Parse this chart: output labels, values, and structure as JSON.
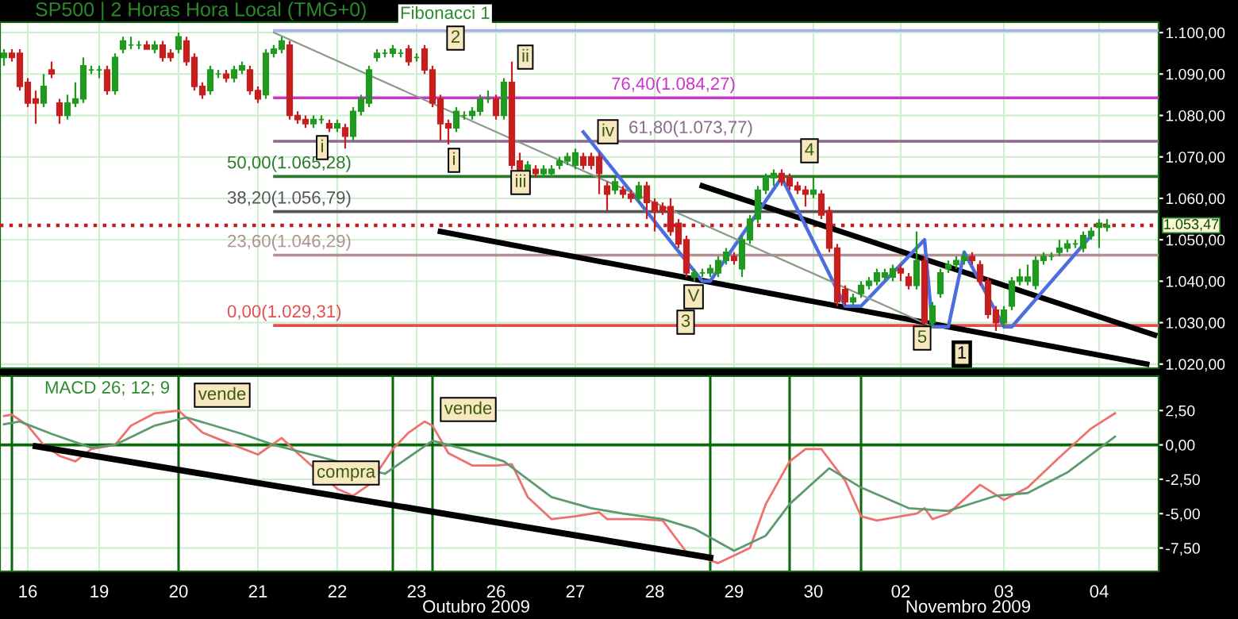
{
  "chart_data": [
    {
      "type": "candlestick",
      "title": "SP500 | 2 Horas Hora Local (TMG+0)",
      "categories": [
        null,
        null,
        null,
        "16",
        null,
        null,
        null,
        null,
        null,
        null,
        null,
        null,
        "19",
        null,
        null,
        null,
        null,
        null,
        null,
        null,
        null,
        null,
        "20",
        null,
        null,
        null,
        null,
        null,
        null,
        null,
        null,
        null,
        "21",
        null,
        null,
        null,
        null,
        null,
        null,
        null,
        null,
        null,
        "22",
        null,
        null,
        null,
        null,
        null,
        null,
        null,
        null,
        null,
        "23",
        null,
        null,
        null,
        null,
        null,
        null,
        null,
        null,
        null,
        "26",
        null,
        null,
        null,
        null,
        null,
        null,
        null,
        null,
        null,
        "27",
        null,
        null,
        null,
        null,
        null,
        null,
        null,
        null,
        null,
        "28",
        null,
        null,
        null,
        null,
        null,
        null,
        null,
        null,
        null,
        "29",
        null,
        null,
        null,
        null,
        null,
        null,
        null,
        null,
        null,
        "30",
        null,
        null,
        null,
        null,
        null,
        null,
        null,
        null,
        null,
        null,
        "02",
        null,
        null,
        null,
        null,
        null,
        null,
        null,
        null,
        null,
        null,
        null,
        null,
        "03",
        null,
        null,
        null,
        null,
        null,
        null,
        null,
        null,
        null,
        null,
        null,
        "04",
        null,
        null,
        null,
        null,
        null,
        null,
        null
      ],
      "ohlc": [
        [
          1094,
          1096,
          1092,
          1095
        ],
        [
          1095,
          1096,
          1093,
          1094
        ],
        [
          1095,
          1096,
          1086,
          1087
        ],
        [
          1088,
          1089,
          1082,
          1083
        ],
        [
          1084,
          1086,
          1078,
          1083
        ],
        [
          1083,
          1090,
          1082,
          1087
        ],
        [
          1091,
          1093,
          1089,
          1090
        ],
        [
          1083,
          1084,
          1078,
          1080
        ],
        [
          1080,
          1085,
          1079,
          1083
        ],
        [
          1083,
          1088,
          1082,
          1084
        ],
        [
          1084,
          1094,
          1083,
          1092
        ],
        [
          1091,
          1092,
          1090,
          1091
        ],
        [
          1091,
          1092,
          1089,
          1091
        ],
        [
          1091,
          1092,
          1085,
          1086
        ],
        [
          1086,
          1095,
          1085,
          1094
        ],
        [
          1096,
          1099,
          1095,
          1098
        ],
        [
          1097,
          1099,
          1096,
          1097
        ],
        [
          1097,
          1098,
          1096,
          1097
        ],
        [
          1097,
          1098,
          1096,
          1096
        ],
        [
          1096,
          1098,
          1095,
          1097
        ],
        [
          1097,
          1098,
          1093,
          1094
        ],
        [
          1095,
          1096,
          1093,
          1094
        ],
        [
          1096,
          1100,
          1095,
          1099
        ],
        [
          1098,
          1099,
          1092,
          1093
        ],
        [
          1094,
          1095,
          1086,
          1087
        ],
        [
          1087,
          1088,
          1084,
          1085
        ],
        [
          1086,
          1092,
          1085,
          1091
        ],
        [
          1090,
          1091,
          1089,
          1090
        ],
        [
          1090,
          1091,
          1088,
          1089
        ],
        [
          1089,
          1092,
          1088,
          1091
        ],
        [
          1091,
          1093,
          1090,
          1092
        ],
        [
          1091,
          1092,
          1085,
          1086
        ],
        [
          1086,
          1087,
          1083,
          1084
        ],
        [
          1085,
          1096,
          1084,
          1095
        ],
        [
          1095,
          1097,
          1094,
          1096
        ],
        [
          1096,
          1099,
          1095,
          1098
        ],
        [
          1097,
          1098,
          1079,
          1080
        ],
        [
          1080,
          1081,
          1078,
          1079
        ],
        [
          1079,
          1080,
          1077,
          1078
        ],
        [
          1078,
          1080,
          1077,
          1079
        ],
        [
          1079,
          1080,
          1078,
          1079
        ],
        [
          1078,
          1079,
          1076,
          1077
        ],
        [
          1077,
          1079,
          1076,
          1078
        ],
        [
          1077,
          1078,
          1072,
          1075
        ],
        [
          1075,
          1082,
          1074,
          1081
        ],
        [
          1081,
          1085,
          1080,
          1084
        ],
        [
          1083,
          1092,
          1082,
          1091
        ],
        [
          1094,
          1096,
          1093,
          1095
        ],
        [
          1095,
          1096,
          1094,
          1095
        ],
        [
          1095,
          1097,
          1094,
          1096
        ],
        [
          1095,
          1096,
          1094,
          1095
        ],
        [
          1096,
          1097,
          1092,
          1093
        ],
        [
          1094,
          1095,
          1093,
          1094
        ],
        [
          1096,
          1097,
          1090,
          1091
        ],
        [
          1091,
          1092,
          1082,
          1083
        ],
        [
          1084,
          1085,
          1074,
          1078
        ],
        [
          1078,
          1079,
          1073,
          1077
        ],
        [
          1077,
          1082,
          1076,
          1081
        ],
        [
          1080,
          1081,
          1079,
          1080
        ],
        [
          1080,
          1082,
          1079,
          1081
        ],
        [
          1081,
          1085,
          1080,
          1084
        ],
        [
          1084,
          1086,
          1083,
          1084
        ],
        [
          1084,
          1085,
          1079,
          1080
        ],
        [
          1080,
          1089,
          1079,
          1088
        ],
        [
          1088,
          1093,
          1067,
          1068
        ],
        [
          1069,
          1071,
          1066,
          1067
        ],
        [
          1067,
          1069,
          1066,
          1068
        ],
        [
          1067,
          1068,
          1065,
          1066
        ],
        [
          1066,
          1068,
          1065,
          1067
        ],
        [
          1066,
          1068,
          1065,
          1067
        ],
        [
          1068,
          1070,
          1067,
          1069
        ],
        [
          1069,
          1071,
          1068,
          1070
        ],
        [
          1068,
          1072,
          1067,
          1071
        ],
        [
          1070,
          1071,
          1067,
          1068
        ],
        [
          1070,
          1071,
          1067,
          1068
        ],
        [
          1070,
          1071,
          1061,
          1066
        ],
        [
          1063,
          1064,
          1057,
          1061
        ],
        [
          1062,
          1065,
          1061,
          1064
        ],
        [
          1062,
          1063,
          1060,
          1061
        ],
        [
          1061,
          1062,
          1059,
          1060
        ],
        [
          1060,
          1064,
          1059,
          1063
        ],
        [
          1063,
          1064,
          1055,
          1059
        ],
        [
          1059,
          1060,
          1052,
          1057
        ],
        [
          1058,
          1059,
          1056,
          1057
        ],
        [
          1058,
          1060,
          1051,
          1052
        ],
        [
          1054,
          1055,
          1048,
          1049
        ],
        [
          1050,
          1051,
          1041,
          1042
        ],
        [
          1041,
          1043,
          1040,
          1042
        ],
        [
          1042,
          1043,
          1041,
          1042
        ],
        [
          1042,
          1044,
          1041,
          1043
        ],
        [
          1042,
          1046,
          1041,
          1045
        ],
        [
          1045,
          1048,
          1044,
          1047
        ],
        [
          1046,
          1047,
          1044,
          1045
        ],
        [
          1043,
          1051,
          1041,
          1050
        ],
        [
          1050,
          1056,
          1049,
          1055
        ],
        [
          1055,
          1063,
          1054,
          1062
        ],
        [
          1062,
          1066,
          1061,
          1065
        ],
        [
          1065,
          1067,
          1063,
          1066
        ],
        [
          1066,
          1067,
          1063,
          1064
        ],
        [
          1065,
          1066,
          1062,
          1063
        ],
        [
          1063,
          1064,
          1061,
          1062
        ],
        [
          1062,
          1063,
          1058,
          1061
        ],
        [
          1061,
          1065,
          1060,
          1062
        ],
        [
          1061,
          1062,
          1055,
          1056
        ],
        [
          1057,
          1058,
          1047,
          1048
        ],
        [
          1048,
          1049,
          1034,
          1035
        ],
        [
          1038,
          1039,
          1034,
          1035
        ],
        [
          1035,
          1037,
          1034,
          1036
        ],
        [
          1037,
          1040,
          1036,
          1039
        ],
        [
          1039,
          1041,
          1038,
          1040
        ],
        [
          1040,
          1043,
          1039,
          1042
        ],
        [
          1041,
          1043,
          1040,
          1042
        ],
        [
          1041,
          1044,
          1040,
          1043
        ],
        [
          1043,
          1044,
          1040,
          1042
        ],
        [
          1041,
          1042,
          1038,
          1039
        ],
        [
          1039,
          1052,
          1038,
          1045
        ],
        [
          1045,
          1046,
          1029,
          1030
        ],
        [
          1030,
          1035,
          1029,
          1034
        ],
        [
          1037,
          1043,
          1036,
          1042
        ],
        [
          1043,
          1045,
          1042,
          1044
        ],
        [
          1044,
          1046,
          1043,
          1045
        ],
        [
          1045,
          1047,
          1044,
          1046
        ],
        [
          1046,
          1047,
          1044,
          1045
        ],
        [
          1044,
          1045,
          1039,
          1040
        ],
        [
          1040,
          1041,
          1031,
          1032
        ],
        [
          1033,
          1034,
          1028,
          1030
        ],
        [
          1030,
          1034,
          1029,
          1033
        ],
        [
          1034,
          1041,
          1033,
          1040
        ],
        [
          1040,
          1043,
          1039,
          1041
        ],
        [
          1040,
          1044,
          1039,
          1041
        ],
        [
          1039,
          1046,
          1038,
          1045
        ],
        [
          1045,
          1047,
          1044,
          1046
        ],
        [
          1046,
          1047,
          1045,
          1046
        ],
        [
          1047,
          1050,
          1046,
          1048
        ],
        [
          1048,
          1050,
          1047,
          1049
        ],
        [
          1049,
          1050,
          1048,
          1049
        ],
        [
          1048,
          1052,
          1047,
          1051
        ],
        [
          1051,
          1053,
          1050,
          1052
        ],
        [
          1053,
          1055,
          1048,
          1054
        ],
        [
          1053,
          1055,
          1052,
          1053.47
        ],
        null,
        null,
        null,
        null,
        null,
        null
      ],
      "series": [
        {
          "type": "line",
          "color": "#000000",
          "values": [
            null,
            null,
            null,
            null,
            null,
            null,
            null,
            null,
            null,
            null,
            null,
            null,
            null,
            null,
            null,
            null,
            null,
            null,
            null,
            null,
            null,
            null,
            null,
            null,
            null,
            null,
            null,
            null,
            null,
            null,
            null,
            null,
            null,
            null,
            null,
            null,
            null,
            null,
            null,
            null,
            null,
            null,
            null,
            null,
            null,
            null,
            null,
            null,
            null,
            null,
            null,
            null,
            null,
            null,
            null,
            1052,
            null,
            null,
            null,
            null,
            null,
            null,
            null,
            null,
            null,
            null,
            null,
            null,
            null,
            null,
            null,
            null,
            null,
            null,
            null,
            null,
            null,
            null,
            null,
            null,
            null,
            null,
            null,
            null,
            null,
            null,
            null,
            null,
            null,
            null,
            null,
            null,
            null,
            null,
            null,
            null,
            null,
            null,
            null,
            null,
            null,
            null,
            null,
            null,
            null,
            null,
            null,
            null,
            null,
            null,
            null,
            null,
            null,
            null,
            null,
            null,
            null,
            null,
            null,
            null,
            null,
            null,
            null,
            null,
            null,
            null,
            null,
            null,
            null,
            null,
            null,
            null,
            null,
            null,
            null,
            null,
            null,
            null,
            null,
            null,
            null,
            null,
            null,
            null,
            1020,
            null
          ]
        },
        {
          "type": "line",
          "color": "#000000",
          "values": [
            null,
            null,
            null,
            null,
            null,
            null,
            null,
            null,
            null,
            null,
            null,
            null,
            null,
            null,
            null,
            null,
            null,
            null,
            null,
            null,
            null,
            null,
            null,
            null,
            null,
            null,
            null,
            null,
            null,
            null,
            null,
            null,
            null,
            null,
            null,
            null,
            null,
            null,
            null,
            null,
            null,
            null,
            null,
            null,
            null,
            null,
            null,
            null,
            null,
            null,
            null,
            null,
            null,
            null,
            null,
            null,
            null,
            null,
            null,
            null,
            null,
            null,
            null,
            null,
            null,
            null,
            null,
            null,
            null,
            null,
            null,
            null,
            null,
            null,
            null,
            null,
            null,
            null,
            null,
            null,
            null,
            null,
            null,
            null,
            null,
            null,
            null,
            null,
            1063,
            null,
            null,
            null,
            null,
            null,
            null,
            null,
            null,
            null,
            null,
            null,
            null,
            null,
            null,
            null,
            null,
            null,
            null,
            null,
            null,
            null,
            null,
            null,
            null,
            null,
            null,
            null,
            null,
            null,
            null,
            null,
            null,
            null,
            null,
            null,
            null,
            null,
            null,
            null,
            null,
            null,
            null,
            null,
            null,
            null,
            null,
            null,
            null,
            null,
            null,
            null,
            null,
            null,
            null,
            null,
            null,
            1027
          ]
        },
        {
          "type": "line",
          "color": "#4a6ee0",
          "values": [
            null,
            null,
            null,
            null,
            null,
            null,
            null,
            null,
            null,
            null,
            null,
            null,
            null,
            null,
            null,
            null,
            null,
            null,
            null,
            null,
            null,
            null,
            null,
            null,
            null,
            null,
            null,
            null,
            null,
            null,
            null,
            null,
            null,
            null,
            null,
            null,
            null,
            null,
            null,
            null,
            null,
            null,
            null,
            null,
            null,
            null,
            null,
            null,
            null,
            null,
            null,
            null,
            null,
            null,
            null,
            null,
            null,
            null,
            null,
            null,
            null,
            null,
            null,
            null,
            null,
            null,
            null,
            null,
            null,
            null,
            null,
            null,
            null,
            1076,
            null,
            null,
            null,
            null,
            null,
            null,
            null,
            null,
            null,
            null,
            null,
            null,
            null,
            null,
            1040,
            1040,
            null,
            null,
            null,
            null,
            null,
            null,
            null,
            null,
            1065,
            null,
            null,
            null,
            null,
            null,
            null,
            null,
            1034,
            null,
            1034,
            null,
            null,
            null,
            null,
            null,
            null,
            null,
            1050,
            1029,
            null,
            1029,
            null,
            1047,
            null,
            null,
            null,
            null,
            1029,
            1029,
            null,
            null,
            null,
            null,
            null,
            null,
            null,
            null,
            null,
            1051,
            null,
            null,
            null,
            null,
            null,
            null,
            null,
            null
          ]
        },
        {
          "type": "line",
          "color": "#8a9a8a",
          "values": [
            null,
            null,
            null,
            null,
            null,
            null,
            null,
            null,
            null,
            null,
            null,
            null,
            null,
            null,
            null,
            null,
            null,
            null,
            null,
            null,
            null,
            null,
            null,
            null,
            null,
            null,
            null,
            null,
            null,
            null,
            null,
            null,
            null,
            null,
            1100,
            null,
            null,
            null,
            null,
            null,
            null,
            null,
            null,
            null,
            null,
            null,
            null,
            null,
            null,
            null,
            null,
            null,
            null,
            null,
            null,
            null,
            null,
            null,
            null,
            null,
            null,
            null,
            null,
            null,
            null,
            null,
            null,
            null,
            null,
            null,
            null,
            null,
            null,
            null,
            null,
            null,
            null,
            null,
            null,
            null,
            null,
            null,
            null,
            null,
            null,
            null,
            null,
            null,
            null,
            null,
            null,
            null,
            null,
            null,
            null,
            null,
            null,
            null,
            null,
            null,
            null,
            null,
            null,
            null,
            null,
            null,
            null,
            null,
            null,
            null,
            null,
            null,
            null,
            null,
            null,
            null,
            null,
            1029,
            null,
            null,
            null,
            null,
            null,
            null,
            null,
            null,
            null,
            null,
            null,
            null,
            null,
            null,
            null,
            null,
            null,
            null,
            null,
            null,
            null,
            null,
            null,
            null,
            null,
            null,
            null,
            null
          ]
        }
      ],
      "ylim": [
        1019,
        1102.5
      ],
      "yticks": [
        {
          "value": 1020,
          "label": "1.020,00"
        },
        {
          "value": 1030,
          "label": "1.030,00"
        },
        {
          "value": 1040,
          "label": "1.040,00"
        },
        {
          "value": 1050,
          "label": "1.050,00"
        },
        {
          "value": 1060,
          "label": "1.060,00"
        },
        {
          "value": 1070,
          "label": "1.070,00"
        },
        {
          "value": 1080,
          "label": "1.080,00"
        },
        {
          "value": 1090,
          "label": "1.090,00"
        },
        {
          "value": 1100,
          "label": "1.100,00"
        }
      ],
      "grid": true,
      "tick_labels": "y",
      "ref_lines": [
        {
          "axis": "y",
          "value": 1100.5,
          "color": "#aab0f0"
        },
        {
          "axis": "y",
          "value": 1084.27,
          "label": "76,40(1.084,27)",
          "color": "#cc33cc"
        },
        {
          "axis": "y",
          "value": 1073.77,
          "label": "61,80(1.073,77)",
          "color": "#8a6a8a"
        },
        {
          "axis": "y",
          "value": 1065.28,
          "label": "50,00(1.065,28)",
          "color": "#2a7a2a"
        },
        {
          "axis": "y",
          "value": 1056.79,
          "label": "38,20(1.056,79)",
          "color": "#555555"
        },
        {
          "axis": "y",
          "value": 1046.29,
          "label": "23,60(1.046,29)",
          "color": "#b09090"
        },
        {
          "axis": "y",
          "value": 1029.31,
          "label": "0,00(1.029,31)",
          "color": "#e05050"
        },
        {
          "axis": "y",
          "value": 1053.47,
          "label": "1.053,47",
          "color": "#c02020",
          "line_style": "dotted"
        }
      ],
      "annotations": [
        "Fibonacci 1",
        "2",
        "ii",
        "i",
        "i",
        "iii",
        "iv",
        "V",
        "3",
        "4",
        "5",
        "1"
      ]
    },
    {
      "type": "line",
      "categories": [
        null,
        null,
        null,
        "16",
        null,
        null,
        null,
        null,
        null,
        null,
        null,
        null,
        "19",
        null,
        null,
        null,
        null,
        null,
        null,
        null,
        null,
        null,
        "20",
        null,
        null,
        null,
        null,
        null,
        null,
        null,
        null,
        null,
        "21",
        null,
        null,
        null,
        null,
        null,
        null,
        null,
        null,
        null,
        "22",
        null,
        null,
        null,
        null,
        null,
        null,
        null,
        null,
        null,
        "23",
        null,
        null,
        null,
        null,
        null,
        null,
        null,
        null,
        null,
        "26",
        null,
        null,
        null,
        null,
        null,
        null,
        null,
        null,
        null,
        "27",
        null,
        null,
        null,
        null,
        null,
        null,
        null,
        null,
        null,
        "28",
        null,
        null,
        null,
        null,
        null,
        null,
        null,
        null,
        null,
        "29",
        null,
        null,
        null,
        null,
        null,
        null,
        null,
        null,
        null,
        "30",
        null,
        null,
        null,
        null,
        null,
        null,
        null,
        null,
        null,
        null,
        "02",
        null,
        null,
        null,
        null,
        null,
        null,
        null,
        null,
        null,
        null,
        null,
        null,
        "03",
        null,
        null,
        null,
        null,
        null,
        null,
        null,
        null,
        null,
        null,
        null,
        "04",
        null,
        null,
        null,
        null,
        null,
        null,
        null
      ],
      "series": [
        {
          "color": "#f07070",
          "values": [
            2.1,
            2.2,
            null,
            1.4,
            null,
            0,
            null,
            -0.8,
            null,
            -1.2,
            null,
            -0.3,
            null,
            null,
            0,
            null,
            1.4,
            null,
            null,
            2.3,
            null,
            null,
            2.5,
            null,
            null,
            0.9,
            null,
            null,
            0.2,
            null,
            null,
            null,
            -0.7,
            null,
            null,
            0.5,
            null,
            -0.6,
            null,
            null,
            null,
            null,
            -3.2,
            null,
            -3.7,
            null,
            -2.9,
            null,
            null,
            -0.3,
            null,
            0.9,
            null,
            1.7,
            1.4,
            null,
            -0.6,
            null,
            null,
            -1.5,
            null,
            null,
            -1.5,
            null,
            -1.4,
            null,
            -3.8,
            null,
            null,
            -5.4,
            null,
            null,
            -5.2,
            null,
            null,
            -4.9,
            -5.4,
            null,
            -5.4,
            null,
            -5.4,
            null,
            null,
            -5.5,
            null,
            null,
            -7.8,
            null,
            null,
            null,
            -8.6,
            null,
            null,
            null,
            -7.5,
            null,
            -4.3,
            null,
            null,
            -1.2,
            null,
            -0.3,
            null,
            -0.3,
            null,
            null,
            -2.6,
            null,
            -5.2,
            null,
            -5.5,
            null,
            null,
            null,
            null,
            -5.0,
            -4.6,
            -5.4,
            null,
            -5.0,
            null,
            null,
            null,
            -2.9,
            null,
            null,
            -4.0,
            null,
            null,
            -3.1,
            null,
            null,
            null,
            -0.9,
            null,
            null,
            null,
            1.2,
            null,
            null,
            2.3,
            null,
            null,
            null,
            null,
            null
          ]
        },
        {
          "color": "#5e9a70",
          "values": [
            1.5,
            null,
            1.7,
            null,
            null,
            null,
            0.8,
            null,
            null,
            null,
            null,
            -0.2,
            null,
            null,
            0,
            null,
            null,
            null,
            null,
            1.4,
            null,
            null,
            null,
            2.0,
            null,
            null,
            null,
            null,
            null,
            null,
            0.8,
            null,
            null,
            null,
            0,
            null,
            null,
            null,
            null,
            null,
            null,
            null,
            null,
            null,
            null,
            null,
            null,
            null,
            -2.1,
            null,
            null,
            null,
            null,
            null,
            0.3,
            null,
            null,
            null,
            -0.3,
            null,
            null,
            null,
            null,
            -1.2,
            null,
            null,
            null,
            null,
            null,
            -3.8,
            null,
            null,
            null,
            null,
            -4.6,
            null,
            null,
            null,
            -5.0,
            null,
            null,
            null,
            null,
            -5.4,
            null,
            null,
            null,
            -6.1,
            null,
            null,
            null,
            null,
            -7.7,
            null,
            null,
            null,
            -6.6,
            null,
            null,
            -4.3,
            null,
            null,
            null,
            null,
            -1.7,
            null,
            null,
            null,
            -3.1,
            null,
            null,
            null,
            null,
            null,
            -4.6,
            null,
            null,
            null,
            null,
            -4.8,
            null,
            null,
            null,
            null,
            null,
            -3.7,
            null,
            null,
            null,
            -3.5,
            null,
            null,
            null,
            null,
            -2.0,
            null,
            null,
            null,
            null,
            null,
            0.6,
            null,
            null,
            null,
            null,
            null
          ]
        },
        {
          "color": "#000000",
          "values": [
            null,
            null,
            null,
            null,
            -0.1,
            null,
            null,
            null,
            null,
            null,
            null,
            null,
            null,
            null,
            null,
            null,
            null,
            null,
            null,
            null,
            null,
            null,
            null,
            null,
            null,
            null,
            null,
            null,
            null,
            null,
            null,
            null,
            null,
            null,
            null,
            null,
            null,
            null,
            null,
            null,
            null,
            null,
            null,
            null,
            null,
            null,
            null,
            null,
            null,
            null,
            null,
            null,
            null,
            null,
            null,
            null,
            null,
            null,
            null,
            null,
            null,
            null,
            null,
            null,
            null,
            null,
            null,
            null,
            null,
            null,
            null,
            null,
            null,
            null,
            null,
            null,
            null,
            null,
            null,
            null,
            null,
            null,
            null,
            null,
            null,
            null,
            null,
            null,
            null,
            -8.2,
            null,
            null,
            null,
            null,
            null,
            null,
            null,
            null,
            null,
            null,
            null,
            null,
            null,
            null,
            null,
            null,
            null,
            null,
            null,
            null,
            null,
            null,
            null,
            null,
            null,
            null,
            null,
            null,
            null,
            null,
            null,
            null,
            null,
            null,
            null,
            null,
            null,
            null,
            null,
            null,
            null,
            null,
            null,
            null,
            null,
            null,
            null,
            null,
            null,
            null,
            null,
            null,
            null,
            null,
            null,
            null
          ]
        }
      ],
      "ylim": [
        -9.2,
        5
      ],
      "yticks": [
        {
          "value": 2.5,
          "label": "2,50"
        },
        {
          "value": 0,
          "label": "0,00"
        },
        {
          "value": -2.5,
          "label": "-2,50"
        },
        {
          "value": -5,
          "label": "-5,00"
        },
        {
          "value": -7.5,
          "label": "-7,50"
        }
      ],
      "grid": true,
      "ref_lines": [
        {
          "axis": "y",
          "value": 0,
          "color": "#0a6a0a"
        }
      ],
      "annotations": [
        "MACD 26; 12; 9",
        "vende",
        "compra",
        "vende",
        "Outubro 2009",
        "Novembro 2009"
      ]
    }
  ]
}
